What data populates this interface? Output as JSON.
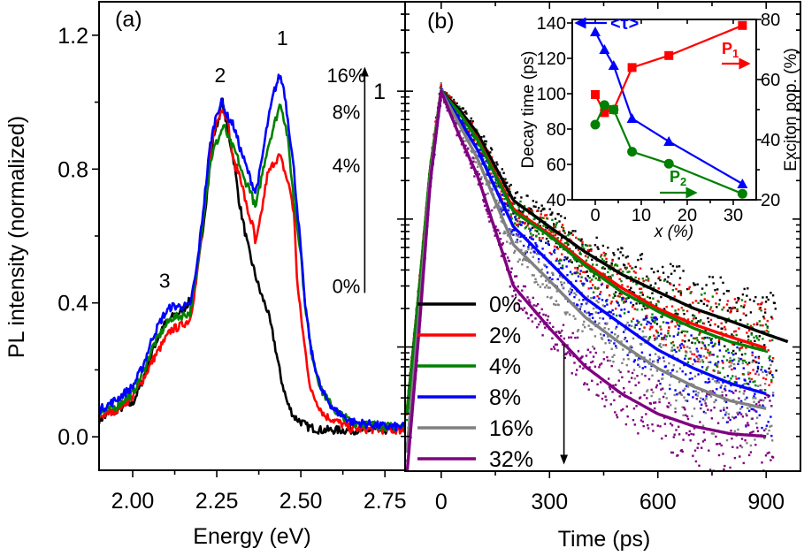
{
  "chart_data": [
    {
      "id": "panel_a",
      "type": "line",
      "panel_label": "(a)",
      "xlabel": "Energy (eV)",
      "ylabel": "PL intensity (normalized)",
      "xlim": [
        1.9,
        2.81
      ],
      "ylim": [
        -0.1,
        1.3
      ],
      "xticks": [
        2.0,
        2.25,
        2.5,
        2.75
      ],
      "xtick_labels": [
        "2.00",
        "2.25",
        "2.50",
        "2.75"
      ],
      "yticks": [
        0.0,
        0.4,
        0.8,
        1.2
      ],
      "ytick_labels": [
        "0.0",
        "0.4",
        "0.8",
        "1.2"
      ],
      "grid": false,
      "peak_labels": [
        {
          "text": "1",
          "x": 2.445,
          "y": 1.17
        },
        {
          "text": "2",
          "x": 2.26,
          "y": 1.06
        },
        {
          "text": "3",
          "x": 2.095,
          "y": 0.445
        }
      ],
      "series_labels": [
        {
          "text": "16%",
          "x": 2.635,
          "y": 1.06
        },
        {
          "text": "8%",
          "x": 2.635,
          "y": 0.95
        },
        {
          "text": "4%",
          "x": 2.635,
          "y": 0.79
        },
        {
          "text": "0%",
          "x": 2.635,
          "y": 0.43
        }
      ],
      "arrow": {
        "direction": "up",
        "x": 2.69,
        "y_from": 0.43,
        "y_to": 1.1
      },
      "series": [
        {
          "name": "0%",
          "color": "#000000",
          "x": [
            1.9,
            1.95,
            2.0,
            2.03,
            2.06,
            2.09,
            2.12,
            2.15,
            2.18,
            2.2,
            2.22,
            2.24,
            2.25,
            2.26,
            2.267,
            2.28,
            2.3,
            2.317,
            2.34,
            2.36,
            2.38,
            2.4,
            2.42,
            2.44,
            2.46,
            2.48,
            2.52,
            2.56,
            2.6,
            2.65,
            2.7,
            2.81
          ],
          "y": [
            0.05,
            0.08,
            0.1,
            0.17,
            0.26,
            0.33,
            0.36,
            0.38,
            0.42,
            0.55,
            0.72,
            0.9,
            0.93,
            0.97,
            1.0,
            0.93,
            0.83,
            0.7,
            0.58,
            0.5,
            0.43,
            0.38,
            0.29,
            0.18,
            0.1,
            0.06,
            0.03,
            0.02,
            0.02,
            0.02,
            0.02,
            0.02
          ]
        },
        {
          "name": "4%",
          "color": "#ff0000",
          "x": [
            1.9,
            1.95,
            2.0,
            2.03,
            2.06,
            2.09,
            2.115,
            2.14,
            2.17,
            2.19,
            2.21,
            2.23,
            2.25,
            2.265,
            2.28,
            2.3,
            2.32,
            2.34,
            2.36,
            2.365,
            2.38,
            2.4,
            2.42,
            2.437,
            2.45,
            2.47,
            2.48,
            2.49,
            2.51,
            2.53,
            2.57,
            2.65,
            2.81
          ],
          "y": [
            0.06,
            0.08,
            0.12,
            0.17,
            0.23,
            0.28,
            0.32,
            0.33,
            0.35,
            0.47,
            0.65,
            0.85,
            0.95,
            0.98,
            0.96,
            0.82,
            0.78,
            0.68,
            0.62,
            0.57,
            0.65,
            0.78,
            0.82,
            0.84,
            0.8,
            0.73,
            0.66,
            0.45,
            0.28,
            0.135,
            0.064,
            0.024,
            0.02
          ]
        },
        {
          "name": "8%",
          "color": "#008000",
          "x": [
            1.9,
            1.95,
            2.0,
            2.03,
            2.06,
            2.09,
            2.115,
            2.14,
            2.17,
            2.19,
            2.21,
            2.23,
            2.245,
            2.255,
            2.27,
            2.29,
            2.31,
            2.33,
            2.35,
            2.365,
            2.38,
            2.4,
            2.42,
            2.44,
            2.46,
            2.48,
            2.5,
            2.51,
            2.53,
            2.56,
            2.6,
            2.65,
            2.76,
            2.81
          ],
          "y": [
            0.07,
            0.09,
            0.13,
            0.19,
            0.27,
            0.32,
            0.355,
            0.36,
            0.37,
            0.48,
            0.66,
            0.82,
            0.87,
            0.89,
            0.93,
            0.88,
            0.84,
            0.77,
            0.74,
            0.68,
            0.76,
            0.86,
            0.93,
            1.0,
            0.9,
            0.7,
            0.55,
            0.42,
            0.26,
            0.14,
            0.08,
            0.045,
            0.03,
            0.03
          ]
        },
        {
          "name": "16%",
          "color": "#0000ff",
          "x": [
            1.9,
            1.95,
            2.0,
            2.03,
            2.06,
            2.09,
            2.115,
            2.14,
            2.17,
            2.19,
            2.21,
            2.23,
            2.25,
            2.265,
            2.28,
            2.3,
            2.32,
            2.34,
            2.365,
            2.38,
            2.4,
            2.42,
            2.437,
            2.45,
            2.47,
            2.48,
            2.5,
            2.51,
            2.53,
            2.56,
            2.6,
            2.65,
            2.76,
            2.81
          ],
          "y": [
            0.08,
            0.11,
            0.15,
            0.21,
            0.3,
            0.36,
            0.39,
            0.39,
            0.39,
            0.5,
            0.68,
            0.87,
            0.97,
            1.0,
            0.96,
            0.93,
            0.86,
            0.8,
            0.73,
            0.8,
            0.93,
            1.03,
            1.08,
            1.04,
            0.88,
            0.79,
            0.56,
            0.42,
            0.26,
            0.14,
            0.08,
            0.045,
            0.03,
            0.03
          ]
        }
      ]
    },
    {
      "id": "panel_b",
      "type": "line",
      "panel_label": "(b)",
      "xlabel": "Time (ps)",
      "ylabel": "",
      "xlim": [
        -100,
        995
      ],
      "ylim": [
        0.00107,
        5.0
      ],
      "yscale": "log",
      "xticks": [
        0,
        300,
        600,
        900
      ],
      "xtick_labels": [
        "0",
        "300",
        "600",
        "900"
      ],
      "yticks_major": [
        0.001,
        0.01,
        0.1,
        1
      ],
      "ytick_labels": [
        {
          "value": 1,
          "text": "1"
        }
      ],
      "grid": false,
      "arrow": {
        "direction": "down",
        "x": 340,
        "y_from": 0.0105,
        "y_to": 0.00125
      },
      "legend": {
        "placement": "bottom-left"
      },
      "series": [
        {
          "name": "0%",
          "color": "#000000",
          "t": [
            -95,
            -60,
            -30,
            0,
            50,
            100,
            200,
            300,
            400,
            500,
            600,
            700,
            800,
            900,
            960
          ],
          "fit": [
            0.003,
            0.03,
            0.25,
            1.0,
            0.72,
            0.47,
            0.14,
            0.087,
            0.055,
            0.037,
            0.027,
            0.02,
            0.016,
            0.0126,
            0.011
          ]
        },
        {
          "name": "2%",
          "color": "#ff0000",
          "t": [
            -95,
            -60,
            -30,
            0,
            50,
            100,
            200,
            300,
            400,
            500,
            600,
            700,
            800,
            900
          ],
          "fit": [
            0.003,
            0.03,
            0.25,
            1.0,
            0.68,
            0.43,
            0.12,
            0.076,
            0.045,
            0.029,
            0.02,
            0.015,
            0.012,
            0.0098
          ]
        },
        {
          "name": "4%",
          "color": "#008000",
          "t": [
            -95,
            -60,
            -30,
            0,
            50,
            100,
            200,
            300,
            400,
            500,
            600,
            700,
            800,
            900
          ],
          "fit": [
            0.003,
            0.03,
            0.25,
            1.0,
            0.68,
            0.42,
            0.115,
            0.074,
            0.043,
            0.027,
            0.019,
            0.014,
            0.011,
            0.0093
          ]
        },
        {
          "name": "8%",
          "color": "#0000ff",
          "t": [
            -95,
            -60,
            -30,
            0,
            50,
            100,
            200,
            300,
            400,
            500,
            600,
            700,
            800,
            900
          ],
          "fit": [
            0.0015,
            0.02,
            0.2,
            1.0,
            0.6,
            0.35,
            0.087,
            0.046,
            0.024,
            0.015,
            0.0095,
            0.0068,
            0.0052,
            0.0043
          ]
        },
        {
          "name": "16%",
          "color": "#808080",
          "t": [
            -95,
            -60,
            -30,
            0,
            50,
            100,
            200,
            300,
            400,
            500,
            600,
            700,
            800,
            900
          ],
          "fit": [
            0.0015,
            0.02,
            0.22,
            1.0,
            0.55,
            0.3,
            0.063,
            0.033,
            0.017,
            0.0105,
            0.0068,
            0.0049,
            0.0038,
            0.0033
          ]
        },
        {
          "name": "32%",
          "color": "#800080",
          "t": [
            -95,
            -60,
            -30,
            0,
            50,
            100,
            200,
            300,
            400,
            500,
            600,
            700,
            800,
            900
          ],
          "fit": [
            0.001,
            0.015,
            0.2,
            1.0,
            0.45,
            0.22,
            0.03,
            0.014,
            0.007,
            0.0043,
            0.003,
            0.0024,
            0.0021,
            0.002
          ]
        }
      ]
    },
    {
      "id": "inset",
      "type": "line",
      "xlabel": "x (%)",
      "ylabel": "Decay time (ps)",
      "ylabel_right": "Exciton pop. (%)",
      "xlim": [
        -5,
        35
      ],
      "ylim": [
        40,
        142
      ],
      "ylim_right": [
        20,
        80
      ],
      "xticks": [
        0,
        10,
        20,
        30
      ],
      "xtick_labels": [
        "0",
        "10",
        "20",
        "30"
      ],
      "yticks": [
        40,
        60,
        80,
        100,
        120,
        140
      ],
      "ytick_labels": [
        "40",
        "60",
        "80",
        "100",
        "120",
        "140"
      ],
      "yticks_right": [
        20,
        40,
        60,
        80
      ],
      "ytick_labels_right": [
        "20",
        "40",
        "60",
        "80"
      ],
      "grid": false,
      "series": [
        {
          "name": "<τ>",
          "axis": "left",
          "marker": "triangle",
          "color": "#0000ff",
          "x": [
            0,
            2,
            4,
            8,
            16,
            32
          ],
          "y": [
            135,
            125,
            116,
            86,
            73,
            49
          ]
        },
        {
          "name": "P1",
          "axis": "right",
          "marker": "square",
          "color": "#ff0000",
          "x": [
            0,
            2,
            4,
            8,
            16,
            32
          ],
          "y": [
            55,
            49,
            50,
            64,
            68,
            78
          ]
        },
        {
          "name": "P2",
          "axis": "right",
          "marker": "circle",
          "color": "#008000",
          "x": [
            0,
            2,
            4,
            8,
            16,
            32
          ],
          "y": [
            45,
            51.5,
            50,
            36,
            32,
            22
          ]
        }
      ],
      "annotations": [
        {
          "text": "<τ>",
          "color": "#0000ff",
          "arrow": "left"
        },
        {
          "text": "P",
          "sub": "1",
          "color": "#ff0000",
          "arrow": "right"
        },
        {
          "text": "P",
          "sub": "2",
          "color": "#008000",
          "arrow": "right"
        }
      ]
    }
  ]
}
